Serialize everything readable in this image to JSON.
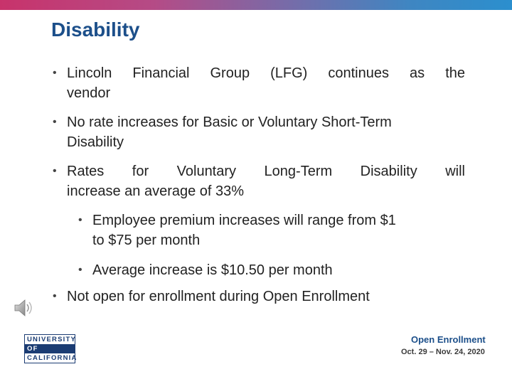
{
  "slide": {
    "title": "Disability",
    "bullets": [
      {
        "line1": "Lincoln Financial Group (LFG) continues as the",
        "line2": "vendor"
      },
      {
        "line1": "No rate increases for Basic or Voluntary Short-Term",
        "line2": "Disability"
      },
      {
        "line1": "Rates for Voluntary Long-Term Disability will",
        "line2": "increase an average of 33%"
      }
    ],
    "sub_bullets": [
      {
        "line1": "Employee premium increases will range from $1",
        "line2": "to $75 per month"
      },
      {
        "line1": "Average increase is $10.50 per month"
      }
    ],
    "last_bullet": "Not open for enrollment during Open Enrollment",
    "bullet_glyph": "•"
  },
  "footer": {
    "university_logo": [
      "UNIVERSITY",
      "OF",
      "CALIFORNIA"
    ],
    "open_enrollment_title": "Open Enrollment",
    "open_enrollment_dates": "Oct. 29 – Nov. 24, 2020"
  },
  "icons": {
    "audio": "speaker-icon"
  },
  "colors": {
    "title": "#1c4f8a",
    "logo": "#1b3c73",
    "text": "#222222"
  }
}
